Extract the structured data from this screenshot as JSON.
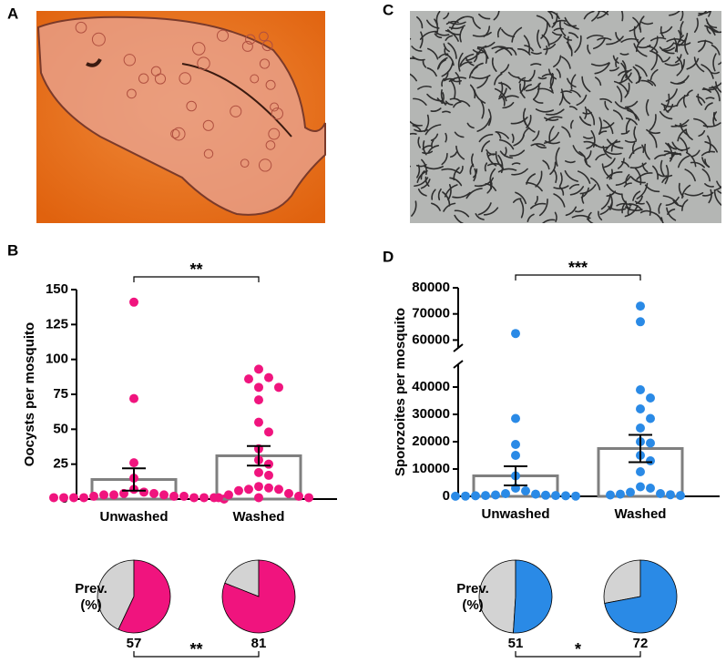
{
  "image_panels": [
    {
      "label": "A"
    },
    {
      "label": "C"
    }
  ],
  "chart_data": [
    {
      "type": "bar",
      "panel": "B",
      "y_label": "Oocysts per mosquito",
      "categories": [
        "Unwashed",
        "Washed"
      ],
      "values": [
        14,
        31
      ],
      "errors": [
        8,
        7
      ],
      "points": [
        [
          141,
          72,
          26,
          15,
          7,
          5,
          4,
          4,
          3,
          3,
          3,
          2,
          2,
          2,
          1,
          1,
          1,
          1,
          1,
          1,
          1,
          0
        ],
        [
          93,
          87,
          86,
          80,
          80,
          71,
          55,
          48,
          36,
          28,
          25,
          19,
          17,
          9,
          8,
          7,
          7,
          6,
          4,
          3,
          2,
          1,
          1,
          1
        ]
      ],
      "color": "#f0147e",
      "bar_color": "#7f7f7f",
      "rest_color": "#d3d3d3",
      "ylim": [
        0,
        150
      ],
      "yticks": [
        0,
        25,
        50,
        75,
        100,
        125,
        150
      ],
      "significance": "**",
      "prevalence_label": [
        "Prev.",
        "(%)"
      ],
      "prevalence": [
        57,
        81
      ],
      "prevalence_significance": "**"
    },
    {
      "type": "bar",
      "panel": "D",
      "y_label": "Sporozoites per mosquito",
      "categories": [
        "Unwashed",
        "Washed"
      ],
      "values": [
        7500,
        17500
      ],
      "errors": [
        3500,
        5000
      ],
      "points": [
        [
          62500,
          28500,
          19000,
          15000,
          7500,
          3000,
          2000,
          1000,
          800,
          500,
          400,
          300,
          300,
          200,
          200,
          100,
          100,
          50
        ],
        [
          73000,
          67000,
          39000,
          36000,
          32000,
          28500,
          25000,
          20000,
          19500,
          15000,
          13000,
          9000,
          3500,
          3000,
          1500,
          1000,
          800,
          600,
          500,
          300
        ]
      ],
      "color": "#2a8ae6",
      "bar_color": "#7f7f7f",
      "rest_color": "#d3d3d3",
      "ylim": [
        0,
        40000
      ],
      "yticks": [
        0,
        10000,
        20000,
        30000,
        40000
      ],
      "ylim_upper": [
        57000,
        80000
      ],
      "yticks_upper": [
        60000,
        70000,
        80000
      ],
      "significance": "***",
      "prevalence_label": [
        "Prev.",
        "(%)"
      ],
      "prevalence": [
        51,
        72
      ],
      "prevalence_significance": "*"
    }
  ]
}
